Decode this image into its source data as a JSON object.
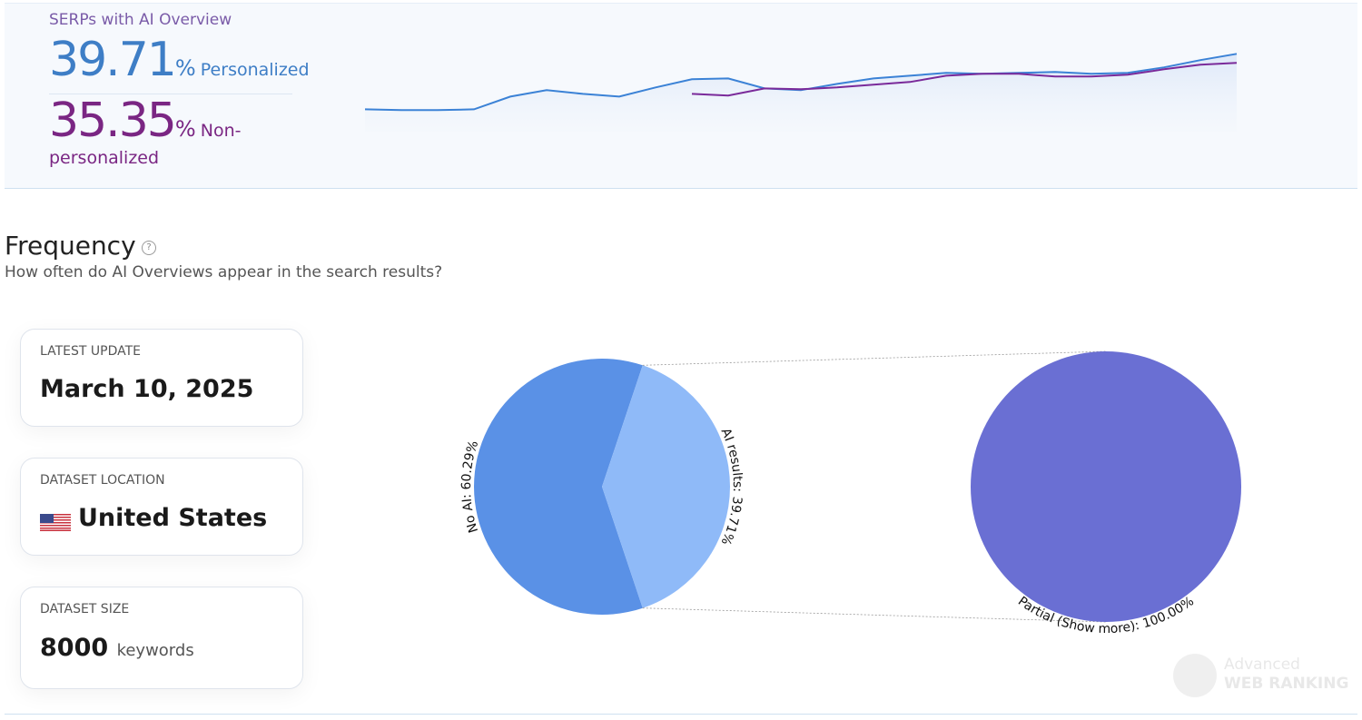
{
  "header": {
    "title": "SERPs with AI Overview",
    "personalized": {
      "value": 39.71,
      "unit": "%",
      "label": "Personalized"
    },
    "non_personalized": {
      "value": 35.35,
      "unit": "%",
      "label": "Non-personalized"
    }
  },
  "sparkline": {
    "type": "line",
    "categories": [
      null,
      null,
      null,
      null,
      null,
      null,
      null,
      null,
      null,
      null,
      null,
      null,
      null,
      null,
      null,
      null,
      null,
      null,
      null,
      null,
      null,
      null,
      null,
      null,
      null
    ],
    "ylim": [
      5,
      42
    ],
    "series": [
      {
        "name": "Personalized",
        "color": "#3b82d6",
        "values": [
          13.1,
          12.7,
          12.7,
          13.1,
          19.2,
          22.3,
          20.5,
          19.2,
          23.6,
          27.5,
          27.9,
          23.1,
          22.3,
          25.3,
          27.9,
          29.2,
          30.6,
          30.1,
          30.6,
          31.0,
          30.1,
          30.6,
          33.2,
          36.7,
          39.71
        ]
      },
      {
        "name": "Non-personalized",
        "color": "#7a2a9a",
        "values": [
          null,
          null,
          null,
          null,
          null,
          null,
          null,
          null,
          null,
          20.5,
          19.7,
          23.1,
          22.7,
          23.6,
          24.9,
          26.2,
          29.2,
          30.1,
          30.1,
          28.8,
          28.8,
          29.7,
          32.3,
          34.5,
          35.35
        ]
      }
    ]
  },
  "section": {
    "title": "Frequency",
    "help": "?",
    "subtitle": "How often do AI Overviews appear in the search results?"
  },
  "cards": [
    {
      "label": "LATEST UPDATE",
      "value": "March 10, 2025"
    },
    {
      "label": "DATASET LOCATION",
      "value": "United States"
    },
    {
      "label": "DATASET SIZE",
      "value": 8000,
      "unit": "keywords"
    }
  ],
  "pie": {
    "type": "pie",
    "categories": [
      "No AI",
      "AI results"
    ],
    "values": [
      60.29,
      39.71
    ],
    "value_labels": [
      "No AI: 60.29%",
      "AI results: 39.71%"
    ],
    "colors": [
      "#5a91e6",
      "#8fbaf8"
    ]
  },
  "detail_pie": {
    "type": "pie",
    "categories": [
      "Partial (Show more)"
    ],
    "values": [
      100
    ],
    "value_labels": [
      "Partial (Show more): 100.00%"
    ],
    "colors": [
      "#6a6fd3"
    ]
  },
  "watermark": {
    "line1": "Advanced",
    "line2": "WEB RANKING"
  }
}
